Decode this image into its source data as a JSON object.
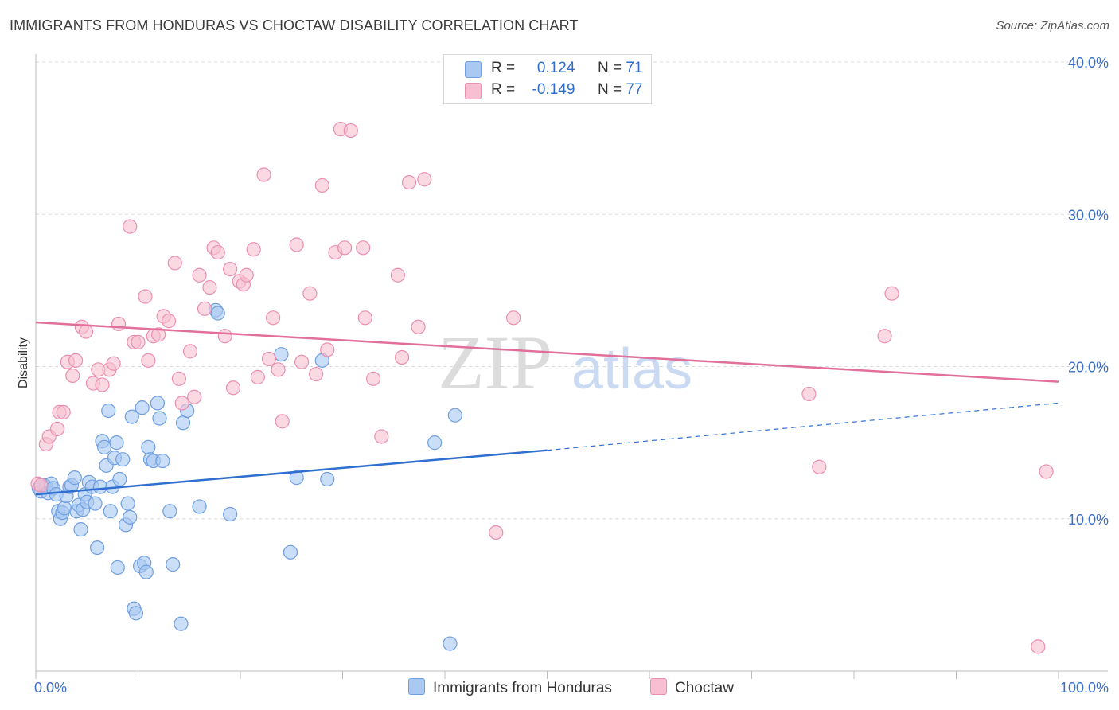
{
  "title": "IMMIGRANTS FROM HONDURAS VS CHOCTAW DISABILITY CORRELATION CHART",
  "source": "Source: ZipAtlas.com",
  "watermark": {
    "zip": "ZIP",
    "atlas": "atlas"
  },
  "legend": {
    "rows": [
      {
        "r_label": "R =",
        "r_value": "0.124",
        "n_label": "N =",
        "n_value": "71",
        "color": "#a9c8f2",
        "border": "#6f9fe0"
      },
      {
        "r_label": "R =",
        "r_value": "-0.149",
        "n_label": "N =",
        "n_value": "77",
        "color": "#f7bfd1",
        "border": "#ea8fb0"
      }
    ]
  },
  "bottom_legend": {
    "series1": "Immigrants from Honduras",
    "series2": "Choctaw"
  },
  "colors": {
    "blue": "#2f6fd0",
    "blue_fill": "#a9c8f2",
    "pink": "#e0709a",
    "pink_fill": "#f7bfd1",
    "grid": "#dcdcdc",
    "axis_text": "#3c6fc4"
  },
  "chart_data": {
    "type": "scatter",
    "title": "IMMIGRANTS FROM HONDURAS VS CHOCTAW DISABILITY CORRELATION CHART",
    "xlabel": "",
    "ylabel": "Disability",
    "xlim": [
      0,
      100
    ],
    "ylim": [
      0,
      40
    ],
    "x_tick_labels": [
      "0.0%",
      "100.0%"
    ],
    "y_tick_labels": [
      "10.0%",
      "20.0%",
      "30.0%",
      "40.0%"
    ],
    "y_ticks": [
      10,
      20,
      30,
      40
    ],
    "series": [
      {
        "name": "Immigrants from Honduras",
        "R": 0.124,
        "N": 71,
        "trend": {
          "x0": 0,
          "y0": 11.6,
          "x1": 50,
          "y1": 14.5,
          "dash_x1": 100,
          "dash_y1": 17.6
        },
        "points": [
          [
            0.3,
            12.0
          ],
          [
            0.5,
            11.8
          ],
          [
            0.8,
            12.2
          ],
          [
            1.0,
            12.1
          ],
          [
            1.2,
            11.7
          ],
          [
            1.5,
            12.3
          ],
          [
            1.7,
            12.0
          ],
          [
            2.0,
            11.6
          ],
          [
            2.2,
            10.5
          ],
          [
            2.4,
            10.0
          ],
          [
            2.6,
            10.4
          ],
          [
            2.8,
            10.7
          ],
          [
            3.0,
            11.5
          ],
          [
            3.3,
            12.1
          ],
          [
            3.5,
            12.2
          ],
          [
            3.8,
            12.7
          ],
          [
            4.0,
            10.5
          ],
          [
            4.2,
            10.9
          ],
          [
            4.4,
            9.3
          ],
          [
            4.6,
            10.6
          ],
          [
            4.8,
            11.6
          ],
          [
            5.0,
            11.1
          ],
          [
            5.2,
            12.4
          ],
          [
            5.5,
            12.1
          ],
          [
            5.8,
            11.0
          ],
          [
            6.0,
            8.1
          ],
          [
            6.3,
            12.1
          ],
          [
            6.5,
            15.1
          ],
          [
            6.7,
            14.7
          ],
          [
            6.9,
            13.5
          ],
          [
            7.1,
            17.1
          ],
          [
            7.3,
            10.5
          ],
          [
            7.5,
            12.1
          ],
          [
            7.7,
            14.0
          ],
          [
            7.9,
            15.0
          ],
          [
            8.0,
            6.8
          ],
          [
            8.2,
            12.6
          ],
          [
            8.5,
            13.9
          ],
          [
            8.8,
            9.6
          ],
          [
            9.0,
            11.0
          ],
          [
            9.2,
            10.1
          ],
          [
            9.4,
            16.7
          ],
          [
            9.6,
            4.1
          ],
          [
            9.8,
            3.8
          ],
          [
            10.2,
            6.9
          ],
          [
            10.4,
            17.3
          ],
          [
            10.6,
            7.1
          ],
          [
            10.8,
            6.5
          ],
          [
            11.0,
            14.7
          ],
          [
            11.2,
            13.9
          ],
          [
            11.5,
            13.8
          ],
          [
            11.9,
            17.6
          ],
          [
            12.1,
            16.6
          ],
          [
            12.4,
            13.8
          ],
          [
            13.1,
            10.5
          ],
          [
            13.4,
            7.0
          ],
          [
            14.2,
            3.1
          ],
          [
            14.4,
            16.3
          ],
          [
            14.8,
            17.1
          ],
          [
            16.0,
            10.8
          ],
          [
            17.6,
            23.7
          ],
          [
            17.8,
            23.5
          ],
          [
            19.0,
            10.3
          ],
          [
            24.0,
            20.8
          ],
          [
            24.9,
            7.8
          ],
          [
            25.5,
            12.7
          ],
          [
            28.0,
            20.4
          ],
          [
            28.5,
            12.6
          ],
          [
            39.0,
            15.0
          ],
          [
            40.5,
            1.8
          ],
          [
            41.0,
            16.8
          ]
        ]
      },
      {
        "name": "Choctaw",
        "R": -0.149,
        "N": 77,
        "trend": {
          "x0": 0,
          "y0": 22.9,
          "x1": 100,
          "y1": 19.0
        },
        "points": [
          [
            0.2,
            12.3
          ],
          [
            0.5,
            12.2
          ],
          [
            1.0,
            14.9
          ],
          [
            1.3,
            15.4
          ],
          [
            2.1,
            15.9
          ],
          [
            2.3,
            17.0
          ],
          [
            2.7,
            17.0
          ],
          [
            3.1,
            20.3
          ],
          [
            3.6,
            19.4
          ],
          [
            3.9,
            20.4
          ],
          [
            4.5,
            22.6
          ],
          [
            4.9,
            22.3
          ],
          [
            5.6,
            18.9
          ],
          [
            6.1,
            19.8
          ],
          [
            6.5,
            18.8
          ],
          [
            7.2,
            19.8
          ],
          [
            7.6,
            20.2
          ],
          [
            8.1,
            22.8
          ],
          [
            9.2,
            29.2
          ],
          [
            9.6,
            21.6
          ],
          [
            10.0,
            21.6
          ],
          [
            10.7,
            24.6
          ],
          [
            11.0,
            20.4
          ],
          [
            11.5,
            22.0
          ],
          [
            12.0,
            22.1
          ],
          [
            12.5,
            23.3
          ],
          [
            13.0,
            23.0
          ],
          [
            13.6,
            26.8
          ],
          [
            14.0,
            19.2
          ],
          [
            14.3,
            17.6
          ],
          [
            15.1,
            21.0
          ],
          [
            15.5,
            18.0
          ],
          [
            16.0,
            26.0
          ],
          [
            16.5,
            23.8
          ],
          [
            17.0,
            25.2
          ],
          [
            17.4,
            27.8
          ],
          [
            17.8,
            27.5
          ],
          [
            18.5,
            22.0
          ],
          [
            19.0,
            26.4
          ],
          [
            19.3,
            18.6
          ],
          [
            19.9,
            25.6
          ],
          [
            20.3,
            25.4
          ],
          [
            20.6,
            26.0
          ],
          [
            21.3,
            27.7
          ],
          [
            21.7,
            19.3
          ],
          [
            22.3,
            32.6
          ],
          [
            22.8,
            20.5
          ],
          [
            23.2,
            23.2
          ],
          [
            23.7,
            19.8
          ],
          [
            24.1,
            16.4
          ],
          [
            25.5,
            28.0
          ],
          [
            26.0,
            20.3
          ],
          [
            26.8,
            24.8
          ],
          [
            27.4,
            19.5
          ],
          [
            28.0,
            31.9
          ],
          [
            28.5,
            21.1
          ],
          [
            29.3,
            27.5
          ],
          [
            29.8,
            35.6
          ],
          [
            30.2,
            27.8
          ],
          [
            30.8,
            35.5
          ],
          [
            32.0,
            27.8
          ],
          [
            32.2,
            23.2
          ],
          [
            33.0,
            19.2
          ],
          [
            33.8,
            15.4
          ],
          [
            35.4,
            26.0
          ],
          [
            35.8,
            20.6
          ],
          [
            36.5,
            32.1
          ],
          [
            37.4,
            22.6
          ],
          [
            38.0,
            32.3
          ],
          [
            45.0,
            9.1
          ],
          [
            46.7,
            23.2
          ],
          [
            75.6,
            18.2
          ],
          [
            76.6,
            13.4
          ],
          [
            83.0,
            22.0
          ],
          [
            83.7,
            24.8
          ],
          [
            98.0,
            1.6
          ],
          [
            98.8,
            13.1
          ]
        ]
      }
    ]
  }
}
